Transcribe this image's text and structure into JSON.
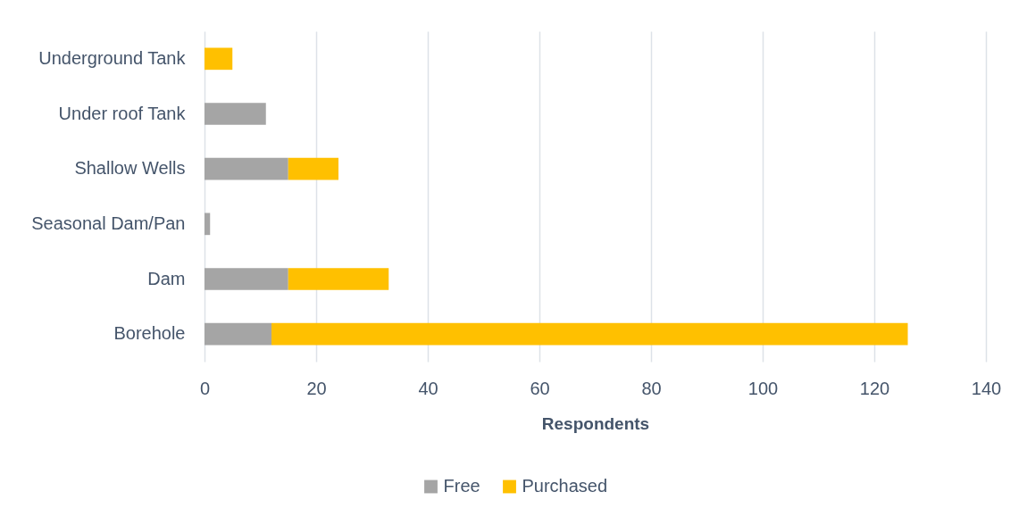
{
  "chart_data": {
    "type": "bar",
    "orientation": "horizontal",
    "stacked": true,
    "xlabel": "Respondents",
    "categories": [
      "Underground Tank",
      "Under roof Tank",
      "Shallow Wells",
      "Seasonal Dam/Pan",
      "Dam",
      "Borehole"
    ],
    "series": [
      {
        "name": "Free",
        "color": "#a5a5a5",
        "values": [
          null,
          11,
          15,
          1,
          15,
          12
        ]
      },
      {
        "name": "Purchased",
        "color": "#ffc000",
        "values": [
          5,
          null,
          9,
          null,
          18,
          114
        ]
      }
    ],
    "xlim": [
      0,
      140
    ],
    "xticks": [
      0,
      20,
      40,
      60,
      80,
      100,
      120,
      140
    ],
    "grid": "x",
    "legend": "bottom"
  }
}
